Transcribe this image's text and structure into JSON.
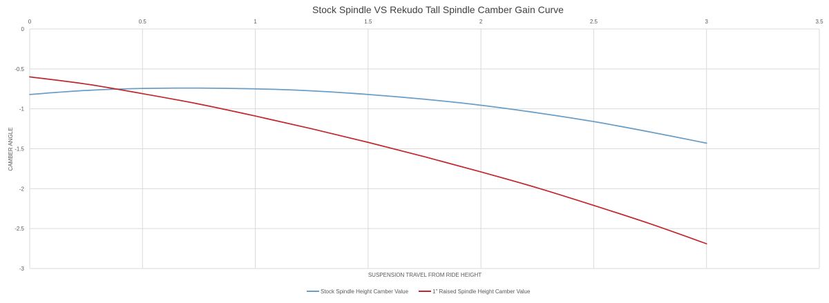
{
  "chart_data": {
    "type": "line",
    "title": "Stock Spindle VS Rekudo Tall Spindle Camber Gain Curve",
    "xlabel": "SUSPENSION TRAVEL FROM RIDE HEIGHT",
    "ylabel": "CAMBER ANGLE",
    "xlim": [
      0,
      3.5
    ],
    "ylim": [
      -3,
      0
    ],
    "x_ticks": [
      "0",
      "0.5",
      "1",
      "1.5",
      "2",
      "2.5",
      "3",
      "3.5"
    ],
    "y_ticks": [
      "0",
      "-0.5",
      "-1",
      "-1.5",
      "-2",
      "-2.5",
      "-3"
    ],
    "x_axis_position": "top",
    "grid": true,
    "legend_position": "bottom",
    "series": [
      {
        "name": "Stock Spindle Height Camber Value",
        "color": "#6a9ec6",
        "x": [
          0,
          0.25,
          0.5,
          0.75,
          1,
          1.25,
          1.5,
          1.75,
          2,
          2.25,
          2.5,
          2.75,
          3
        ],
        "y": [
          -0.82,
          -0.77,
          -0.745,
          -0.74,
          -0.75,
          -0.775,
          -0.82,
          -0.88,
          -0.955,
          -1.05,
          -1.16,
          -1.29,
          -1.43
        ]
      },
      {
        "name": "1\" Raised Spindle Height Camber Value",
        "color": "#c0282d",
        "x": [
          0,
          0.25,
          0.5,
          0.75,
          1,
          1.25,
          1.5,
          1.75,
          2,
          2.25,
          2.5,
          2.75,
          3
        ],
        "y": [
          -0.6,
          -0.69,
          -0.81,
          -0.94,
          -1.09,
          -1.25,
          -1.42,
          -1.6,
          -1.79,
          -1.99,
          -2.21,
          -2.44,
          -2.69
        ]
      }
    ]
  }
}
